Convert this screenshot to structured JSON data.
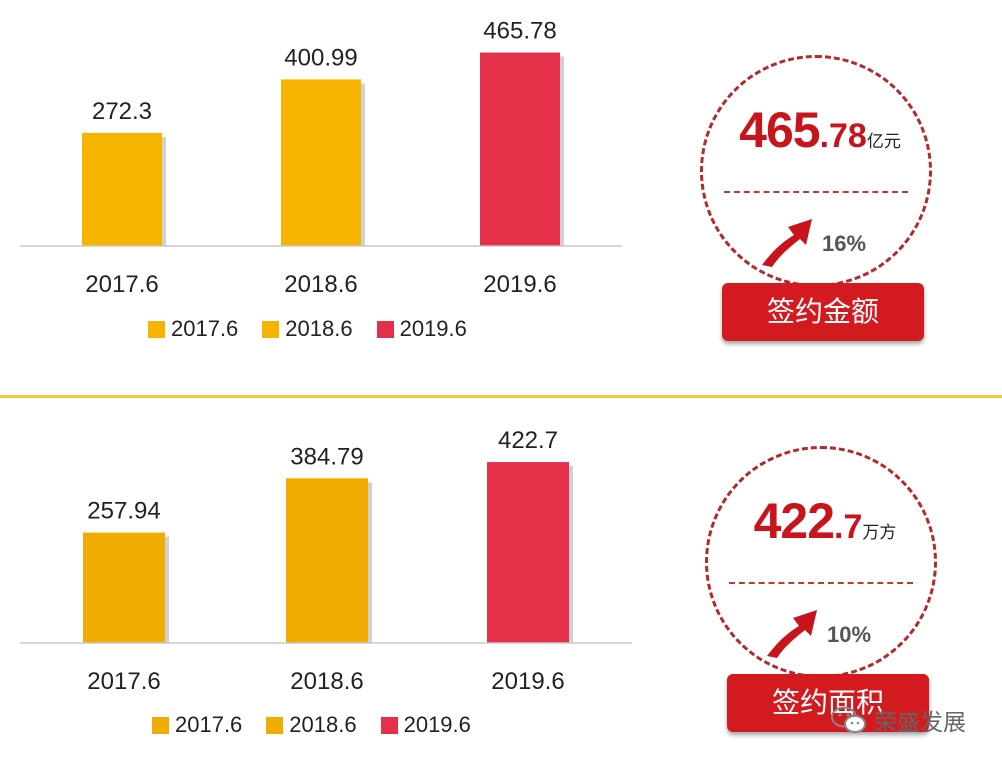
{
  "chart_data": [
    {
      "type": "bar",
      "categories": [
        "2017.6",
        "2018.6",
        "2019.6"
      ],
      "values": [
        272.3,
        400.99,
        465.78
      ],
      "value_labels": [
        "272.3",
        "400.99",
        "465.78"
      ],
      "colors": [
        "#f5b400",
        "#f5b400",
        "#e5304a"
      ],
      "legend": [
        "2017.6",
        "2018.6",
        "2019.6"
      ],
      "legend_placement": "bottom",
      "grid": false,
      "ylim": [
        0,
        520
      ]
    },
    {
      "type": "bar",
      "categories": [
        "2017.6",
        "2018.6",
        "2019.6"
      ],
      "values": [
        257.94,
        384.79,
        422.7
      ],
      "value_labels": [
        "257.94",
        "384.79",
        "422.7"
      ],
      "colors": [
        "#f0ac00",
        "#f0ac00",
        "#e5304a"
      ],
      "legend": [
        "2017.6",
        "2018.6",
        "2019.6"
      ],
      "legend_placement": "bottom",
      "grid": false,
      "ylim": [
        0,
        500
      ]
    }
  ],
  "kpis": [
    {
      "value_int": "465",
      "value_dec": ".78",
      "unit": "亿元",
      "growth": "16%",
      "label": "签约金额"
    },
    {
      "value_int": "422",
      "value_dec": ".7",
      "unit": "万方",
      "growth": "10%",
      "label": "签约面积"
    }
  ],
  "watermark": {
    "text": "荣盛发展",
    "icon": "wechat-icon"
  },
  "colors": {
    "accent_red": "#d21a1f",
    "divider": "#f3c433"
  }
}
